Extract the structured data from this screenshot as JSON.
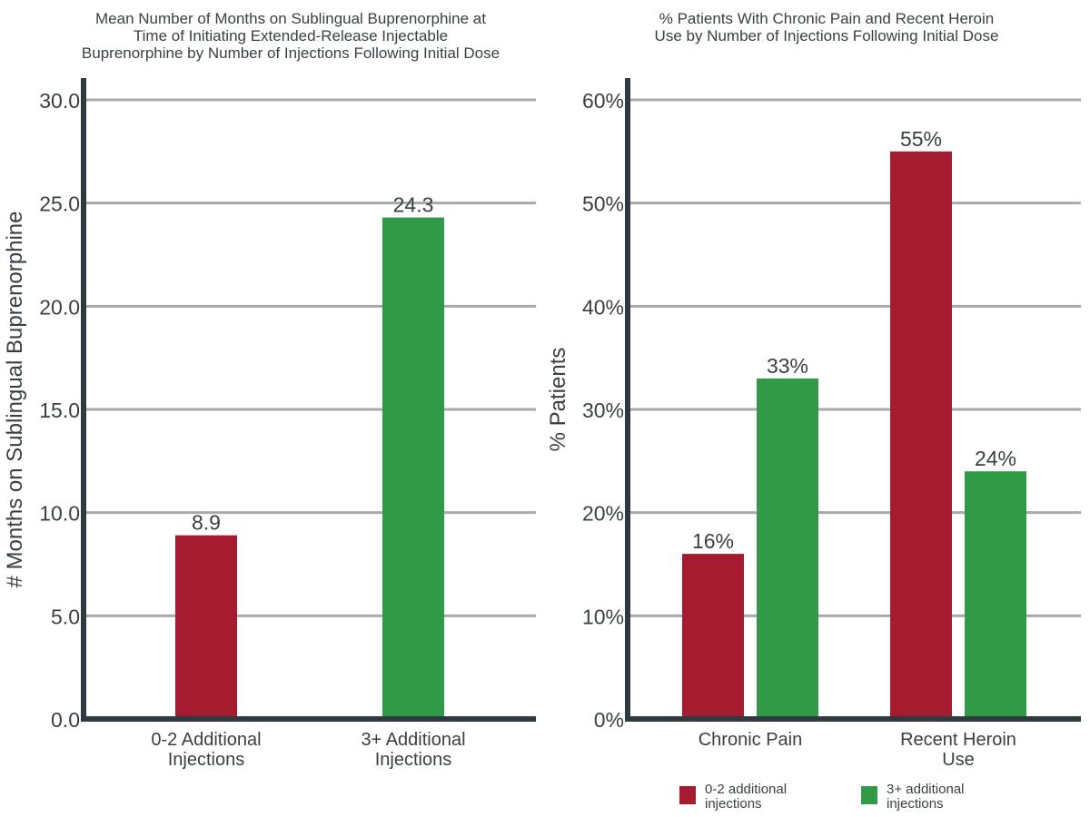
{
  "chart_data": [
    {
      "type": "bar",
      "title_lines": [
        "Mean Number of Months on Sublingual Buprenorphine at",
        "Time of Initiating Extended-Release Injectable",
        "Buprenorphine by Number of Injections Following Initial Dose"
      ],
      "ylabel": "# Months on Sublingual Buprenorphine",
      "xlabel": "",
      "ylim": [
        0,
        30
      ],
      "yticks": [
        "0.0",
        "5.0",
        "10.0",
        "15.0",
        "20.0",
        "25.0",
        "30.0"
      ],
      "grid": true,
      "categories": [
        [
          "0-2 Additional",
          "Injections"
        ],
        [
          "3+ Additional",
          "Injections"
        ]
      ],
      "values": [
        8.9,
        24.3
      ],
      "value_labels": [
        "8.9",
        "24.3"
      ],
      "colors": [
        "#a51c30",
        "#319a47"
      ]
    },
    {
      "type": "bar",
      "title_lines": [
        "% Patients With Chronic Pain and Recent Heroin",
        "Use by Number of Injections Following Initial Dose"
      ],
      "ylabel": "% Patients",
      "xlabel": "",
      "ylim": [
        0,
        60
      ],
      "yticks": [
        "0%",
        "10%",
        "20%",
        "30%",
        "40%",
        "50%",
        "60%"
      ],
      "grid": true,
      "categories": [
        [
          "Chronic Pain"
        ],
        [
          "Recent Heroin",
          "Use"
        ]
      ],
      "series": [
        {
          "name_lines": [
            "0-2 additional",
            "injections"
          ],
          "color": "#a51c30",
          "values": [
            16,
            55
          ],
          "value_labels": [
            "16%",
            "55%"
          ]
        },
        {
          "name_lines": [
            "3+ additional",
            "injections"
          ],
          "color": "#319a47",
          "values": [
            33,
            24
          ],
          "value_labels": [
            "33%",
            "24%"
          ]
        }
      ],
      "legend_position": "bottom"
    }
  ]
}
